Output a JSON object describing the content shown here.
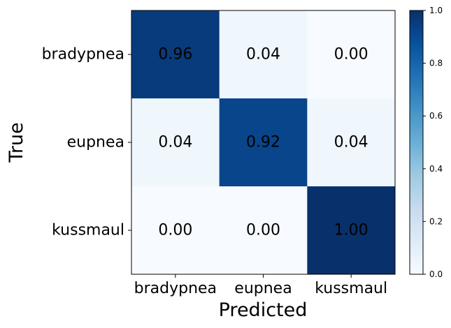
{
  "chart_data": {
    "type": "heatmap",
    "title": "",
    "xlabel": "Predicted",
    "ylabel": "True",
    "x_categories": [
      "bradypnea",
      "eupnea",
      "kussmaul"
    ],
    "y_categories": [
      "bradypnea",
      "eupnea",
      "kussmaul"
    ],
    "values": [
      [
        0.96,
        0.04,
        0.0
      ],
      [
        0.04,
        0.92,
        0.04
      ],
      [
        0.0,
        0.0,
        1.0
      ]
    ],
    "cell_labels": [
      [
        "0.96",
        "0.04",
        "0.00"
      ],
      [
        "0.04",
        "0.92",
        "0.04"
      ],
      [
        "0.00",
        "0.00",
        "1.00"
      ]
    ],
    "colormap": "Blues",
    "colorbar": {
      "range": [
        0.0,
        1.0
      ],
      "ticks": [
        "0.0",
        "0.2",
        "0.4",
        "0.6",
        "0.8",
        "1.0"
      ]
    },
    "grid": false
  }
}
